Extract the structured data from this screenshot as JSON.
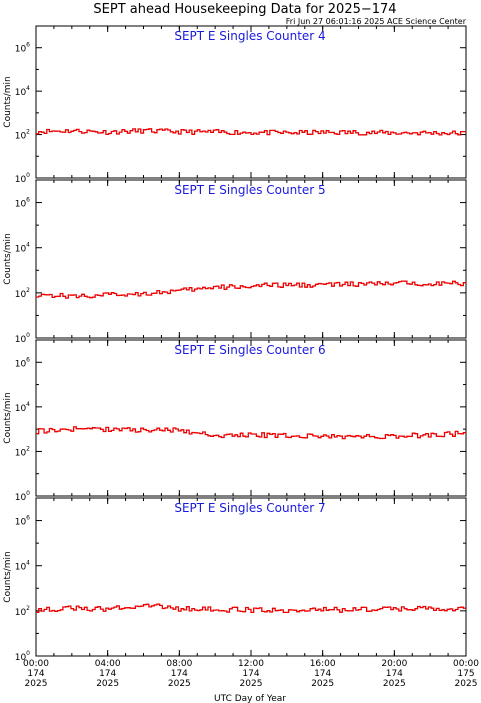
{
  "header": {
    "title": "SEPT ahead Housekeeping Data for 2025−174",
    "timestamp": "Fri Jun 27 06:01:16 2025 ACE Science Center"
  },
  "colors": {
    "line": "#ee0000",
    "panel_title": "#1a1adc",
    "axis": "#000000"
  },
  "x_axis": {
    "label": "UTC Day of Year",
    "ticks": [
      {
        "hours": 0,
        "time": "00:00",
        "doy": "174",
        "year": "2025"
      },
      {
        "hours": 4,
        "time": "04:00",
        "doy": "174",
        "year": "2025"
      },
      {
        "hours": 8,
        "time": "08:00",
        "doy": "174",
        "year": "2025"
      },
      {
        "hours": 12,
        "time": "12:00",
        "doy": "174",
        "year": "2025"
      },
      {
        "hours": 16,
        "time": "16:00",
        "doy": "174",
        "year": "2025"
      },
      {
        "hours": 20,
        "time": "20:00",
        "doy": "174",
        "year": "2025"
      },
      {
        "hours": 24,
        "time": "00:00",
        "doy": "175",
        "year": "2025"
      }
    ]
  },
  "y_axis": {
    "label": "Counts/min",
    "scale": "log",
    "ylim": [
      1,
      10000000
    ],
    "ticks": [
      {
        "base": "10",
        "exp": "0"
      },
      {
        "base": "10",
        "exp": "2"
      },
      {
        "base": "10",
        "exp": "4"
      },
      {
        "base": "10",
        "exp": "6"
      }
    ]
  },
  "chart_data": [
    {
      "type": "line",
      "title": "SEPT E Singles Counter 4",
      "xlim": [
        0,
        24
      ],
      "ylim": [
        1,
        10000000
      ],
      "yscale": "log",
      "series": [
        {
          "x_hours": [
            0,
            2,
            4,
            6,
            8,
            10,
            12,
            14,
            16,
            18,
            20,
            22,
            24
          ],
          "values": [
            140,
            150,
            130,
            150,
            135,
            130,
            125,
            120,
            125,
            125,
            120,
            120,
            115
          ]
        }
      ]
    },
    {
      "type": "line",
      "title": "SEPT E Singles Counter 5",
      "xlim": [
        0,
        24
      ],
      "ylim": [
        1,
        10000000
      ],
      "yscale": "log",
      "series": [
        {
          "x_hours": [
            0,
            2,
            4,
            6,
            8,
            10,
            12,
            14,
            16,
            18,
            20,
            22,
            24
          ],
          "values": [
            85,
            70,
            80,
            95,
            120,
            170,
            200,
            220,
            230,
            240,
            260,
            270,
            250
          ]
        }
      ]
    },
    {
      "type": "line",
      "title": "SEPT E Singles Counter 6",
      "xlim": [
        0,
        24
      ],
      "ylim": [
        1,
        10000000
      ],
      "yscale": "log",
      "series": [
        {
          "x_hours": [
            0,
            2,
            4,
            6,
            8,
            10,
            12,
            14,
            16,
            18,
            20,
            22,
            24
          ],
          "values": [
            800,
            1000,
            1000,
            900,
            900,
            500,
            550,
            500,
            480,
            450,
            480,
            550,
            650
          ]
        }
      ]
    },
    {
      "type": "line",
      "title": "SEPT E Singles Counter 7",
      "xlim": [
        0,
        24
      ],
      "ylim": [
        1,
        10000000
      ],
      "yscale": "log",
      "series": [
        {
          "x_hours": [
            0,
            2,
            4,
            6,
            8,
            10,
            12,
            14,
            16,
            18,
            20,
            22,
            24
          ],
          "values": [
            110,
            130,
            115,
            180,
            125,
            115,
            110,
            110,
            110,
            115,
            120,
            125,
            130
          ]
        }
      ]
    }
  ]
}
